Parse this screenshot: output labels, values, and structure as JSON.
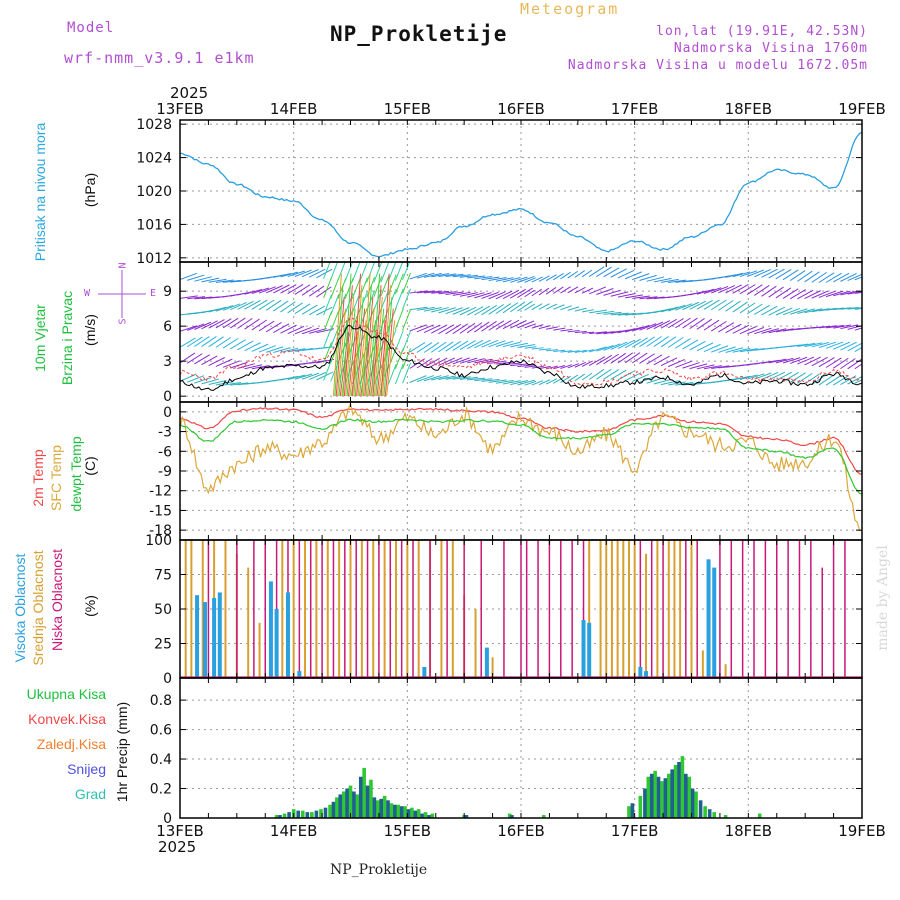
{
  "header": {
    "model_label": "Model",
    "model_name": "wrf-nmm_v3.9.1 e1km",
    "title": "NP_Prokletije",
    "subtitle": "Meteogram",
    "coords": "lon,lat (19.91E, 42.53N)",
    "elevation": "Nadmorska Visina 1760m",
    "elevation_model": "Nadmorska Visina u modelu 1672.05m",
    "year": "2025",
    "footer_station": "NP_Prokletije",
    "watermark": "made by Angel"
  },
  "axis": {
    "date_labels": [
      "13FEB",
      "14FEB",
      "15FEB",
      "16FEB",
      "17FEB",
      "18FEB",
      "19FEB"
    ],
    "year": "2025"
  },
  "panels": {
    "pressure": {
      "label": "Pritisak na nivou mora",
      "unit": "(hPa)"
    },
    "wind": {
      "label1": "10m Vjetar",
      "label2": "Brzina i Pravac",
      "unit": "(m/s)",
      "compass_w": "W",
      "compass_e": "E",
      "compass_n": "N",
      "compass_s": "S"
    },
    "temp": {
      "label1": "2m Temp",
      "label2": "SFC Temp",
      "label3": "dewpt Temp",
      "unit": "(C)"
    },
    "cloud": {
      "label1": "Visoka Oblacnost",
      "label2": "Srednja Oblacnost",
      "label3": "Niska Oblacnost",
      "unit": "(%)"
    },
    "precip": {
      "label": "1hr Precip (mm)",
      "legend": [
        "Ukupna Kisa",
        "Konvek.Kisa",
        "Zaledj.Kisa",
        "Snijeg",
        "Grad"
      ]
    }
  },
  "colors": {
    "pressure": "#2a9fe0",
    "temp2m": "#f04848",
    "sfc": "#dca83a",
    "dewpt": "#30c830",
    "cloud_high": "#2aa0e0",
    "cloud_mid": "#d8a030",
    "cloud_low": "#c8187a",
    "rain_total": "#30c830",
    "rain_conv": "#f04848",
    "rain_frz": "#f08030",
    "snow": "#5050e0",
    "hail": "#30c0b0",
    "grid": "#9a9a9a"
  },
  "chart_data": [
    {
      "type": "line",
      "title": "Pritisak na nivou mora",
      "ylabel": "(hPa)",
      "x_days": [
        0,
        0.25,
        0.5,
        0.75,
        1,
        1.25,
        1.5,
        1.75,
        2,
        2.25,
        2.5,
        2.75,
        3,
        3.25,
        3.5,
        3.75,
        4,
        4.25,
        4.5,
        4.75,
        5,
        5.25,
        5.5,
        5.75,
        6
      ],
      "values": [
        1024.5,
        1023.2,
        1020.8,
        1019.3,
        1018.8,
        1016.5,
        1013.8,
        1012.2,
        1013.0,
        1013.8,
        1015.8,
        1017.2,
        1017.8,
        1016.2,
        1014.5,
        1012.8,
        1014.0,
        1013.0,
        1014.5,
        1016.0,
        1021.0,
        1022.5,
        1022.0,
        1020.3,
        1027.0
      ],
      "ylim": [
        1011.5,
        1028.5
      ],
      "yticks": [
        1012,
        1016,
        1020,
        1024,
        1028
      ]
    },
    {
      "type": "line",
      "title": "10m Vjetar Brzina i Pravac",
      "ylabel": "(m/s)",
      "x_days": [
        0,
        0.25,
        0.5,
        0.75,
        1,
        1.25,
        1.5,
        1.75,
        2,
        2.25,
        2.5,
        2.75,
        3,
        3.25,
        3.5,
        3.75,
        4,
        4.25,
        4.5,
        4.75,
        5,
        5.25,
        5.5,
        5.75,
        6
      ],
      "wind_speed_black": [
        1.2,
        0.5,
        1.5,
        2.4,
        2.6,
        2.5,
        6.0,
        5.0,
        3.0,
        2.4,
        1.8,
        2.5,
        3.0,
        2.0,
        0.8,
        0.9,
        1.2,
        1.6,
        1.0,
        1.8,
        1.1,
        1.3,
        1.0,
        1.9,
        1.1
      ],
      "gust_red": [
        2.0,
        1.5,
        2.5,
        3.5,
        3.8,
        3.0,
        6.5,
        5.5,
        3.5,
        2.8,
        2.5,
        3.0,
        3.5,
        2.5,
        1.2,
        1.2,
        2.0,
        2.2,
        1.5,
        2.0,
        1.4,
        1.5,
        1.2,
        2.2,
        1.3
      ],
      "ylim": [
        -0.5,
        11.5
      ],
      "yticks": [
        0,
        3,
        6,
        9
      ]
    },
    {
      "type": "line",
      "title": "2m Temp / SFC Temp / dewpt Temp",
      "ylabel": "(C)",
      "x_days": [
        0,
        0.25,
        0.5,
        0.75,
        1,
        1.25,
        1.5,
        1.75,
        2,
        2.25,
        2.5,
        2.75,
        3,
        3.25,
        3.5,
        3.75,
        4,
        4.25,
        4.5,
        4.75,
        5,
        5.25,
        5.5,
        5.75,
        6
      ],
      "series": [
        {
          "name": "2m Temp",
          "values": [
            -1.0,
            -2.5,
            0.2,
            0.5,
            0.3,
            -0.8,
            0.5,
            0.2,
            0.4,
            0.4,
            0.2,
            0.0,
            -1.0,
            -2.5,
            -3.0,
            -2.8,
            -1.2,
            -0.6,
            -1.5,
            -1.8,
            -3.8,
            -4.2,
            -5.0,
            -4.0,
            -9.5
          ]
        },
        {
          "name": "SFC Temp",
          "values": [
            -1.5,
            -11.5,
            -8.0,
            -5.5,
            -6.5,
            -4.5,
            0.2,
            -4.0,
            -1.0,
            -3.5,
            -0.5,
            -5.5,
            -1.0,
            -3.0,
            -6.0,
            -3.5,
            -8.5,
            -1.0,
            -3.0,
            -5.0,
            -4.5,
            -8.0,
            -7.5,
            -4.0,
            -18.0
          ]
        },
        {
          "name": "dewpt Temp",
          "values": [
            -2.0,
            -4.5,
            -1.5,
            -1.2,
            -1.5,
            -2.5,
            -1.2,
            -1.5,
            -1.2,
            -1.5,
            -1.3,
            -1.4,
            -2.0,
            -4.0,
            -4.0,
            -3.5,
            -1.8,
            -1.8,
            -2.4,
            -2.5,
            -5.5,
            -6.0,
            -7.0,
            -5.5,
            -12.5
          ]
        }
      ],
      "ylim": [
        -19.5,
        1.5
      ],
      "yticks": [
        0,
        -3,
        -6,
        -9,
        -12,
        -15,
        -18
      ]
    },
    {
      "type": "bar",
      "title": "Visoka / Srednja / Niska Oblacnost",
      "ylabel": "(%)",
      "ylim": [
        0,
        100
      ],
      "yticks": [
        0,
        25,
        50,
        75,
        100
      ],
      "series": [
        {
          "name": "Visoka Oblacnost",
          "x_days": [
            0.15,
            0.22,
            0.3,
            0.35,
            0.8,
            0.85,
            0.95,
            1.05,
            2.15,
            2.7,
            3.55,
            3.6,
            4.05,
            4.1,
            4.65,
            4.7
          ],
          "values": [
            60,
            55,
            58,
            62,
            70,
            50,
            62,
            5,
            8,
            22,
            42,
            40,
            8,
            5,
            86,
            80
          ]
        },
        {
          "name": "Srednja Oblacnost",
          "x_days": [
            0.05,
            0.1,
            0.2,
            0.3,
            0.4,
            0.5,
            0.6,
            0.7,
            0.9,
            1.0,
            1.1,
            1.2,
            1.3,
            1.4,
            1.5,
            1.6,
            1.7,
            1.8,
            1.9,
            2.0,
            2.1,
            2.2,
            2.3,
            2.4,
            2.5,
            2.6,
            2.75,
            3.6,
            3.7,
            3.75,
            3.8,
            3.85,
            3.9,
            3.95,
            4.0,
            4.1,
            4.2,
            4.3,
            4.35,
            4.4,
            4.5,
            4.6,
            4.8
          ],
          "values": [
            100,
            100,
            100,
            100,
            100,
            90,
            80,
            40,
            100,
            100,
            100,
            100,
            100,
            100,
            100,
            100,
            100,
            100,
            100,
            100,
            100,
            100,
            100,
            100,
            60,
            50,
            15,
            100,
            100,
            100,
            100,
            100,
            100,
            100,
            100,
            90,
            100,
            100,
            100,
            100,
            100,
            20,
            10
          ]
        },
        {
          "name": "Niska Oblacnost",
          "x_days": [
            0.25,
            0.5,
            0.65,
            0.75,
            0.85,
            0.95,
            1.05,
            1.15,
            1.25,
            1.35,
            1.45,
            1.55,
            1.65,
            1.75,
            1.85,
            1.95,
            2.05,
            2.2,
            2.35,
            2.5,
            2.65,
            2.85,
            3.0,
            3.05,
            3.15,
            3.25,
            3.35,
            3.45,
            3.55,
            4.05,
            4.15,
            4.25,
            4.45,
            4.55,
            4.75,
            4.85,
            4.95,
            5.05,
            5.15,
            5.25,
            5.35,
            5.45,
            5.55,
            5.65,
            5.75,
            5.85
          ],
          "values": [
            100,
            100,
            100,
            100,
            100,
            100,
            100,
            100,
            100,
            100,
            100,
            100,
            100,
            100,
            100,
            100,
            100,
            100,
            100,
            100,
            100,
            100,
            100,
            100,
            100,
            100,
            100,
            100,
            100,
            100,
            100,
            100,
            100,
            100,
            100,
            100,
            100,
            100,
            100,
            100,
            100,
            100,
            100,
            80,
            100,
            100
          ]
        }
      ]
    },
    {
      "type": "bar",
      "title": "1hr Precip",
      "ylabel": "1hr Precip (mm)",
      "ylim": [
        0,
        0.95
      ],
      "yticks": [
        0,
        0.2,
        0.4,
        0.6,
        0.8
      ],
      "series": [
        {
          "name": "Ukupna Kisa",
          "x_days": [
            0.85,
            0.92,
            1.0,
            1.08,
            1.16,
            1.24,
            1.32,
            1.38,
            1.44,
            1.5,
            1.56,
            1.62,
            1.68,
            1.74,
            1.8,
            1.86,
            1.92,
            1.98,
            2.04,
            2.1,
            2.16,
            2.22,
            2.5,
            2.9,
            3.2,
            3.95,
            4.05,
            4.12,
            4.18,
            4.24,
            4.3,
            4.36,
            4.42,
            4.48,
            4.54,
            4.62,
            4.7,
            4.8,
            5.1
          ],
          "values": [
            0.02,
            0.03,
            0.06,
            0.05,
            0.04,
            0.06,
            0.09,
            0.14,
            0.18,
            0.22,
            0.16,
            0.34,
            0.26,
            0.12,
            0.15,
            0.1,
            0.09,
            0.08,
            0.07,
            0.06,
            0.04,
            0.03,
            0.02,
            0.03,
            0.02,
            0.08,
            0.15,
            0.28,
            0.32,
            0.25,
            0.3,
            0.36,
            0.42,
            0.28,
            0.18,
            0.08,
            0.04,
            0.02,
            0.03
          ]
        },
        {
          "name": "Snijeg",
          "x_days": [
            0.88,
            0.96,
            1.04,
            1.12,
            1.2,
            1.28,
            1.35,
            1.41,
            1.47,
            1.53,
            1.59,
            1.65,
            1.71,
            1.77,
            1.83,
            1.89,
            1.95,
            2.01,
            2.07,
            2.13,
            2.19,
            2.52,
            2.92,
            3.98,
            4.09,
            4.15,
            4.21,
            4.27,
            4.33,
            4.39,
            4.45,
            4.51,
            4.58,
            4.66
          ],
          "values": [
            0.02,
            0.04,
            0.05,
            0.04,
            0.05,
            0.07,
            0.11,
            0.16,
            0.2,
            0.18,
            0.28,
            0.22,
            0.14,
            0.13,
            0.12,
            0.09,
            0.08,
            0.06,
            0.05,
            0.03,
            0.02,
            0.02,
            0.02,
            0.1,
            0.2,
            0.3,
            0.28,
            0.27,
            0.33,
            0.38,
            0.3,
            0.2,
            0.12,
            0.06
          ]
        }
      ]
    }
  ]
}
